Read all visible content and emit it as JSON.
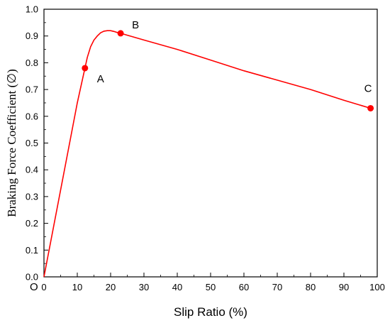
{
  "chart_data": {
    "type": "line",
    "title": "",
    "xlabel": "Slip Ratio (%)",
    "ylabel": "Braking Force Coefficient (∅)",
    "xlim": [
      0,
      100
    ],
    "ylim": [
      0.0,
      1.0
    ],
    "x_ticks": [
      "0",
      "10",
      "20",
      "30",
      "40",
      "50",
      "60",
      "70",
      "80",
      "90",
      "100"
    ],
    "y_ticks": [
      "0.0",
      "0.1",
      "0.2",
      "0.3",
      "0.4",
      "0.5",
      "0.6",
      "0.7",
      "0.8",
      "0.9",
      "1.0"
    ],
    "origin_label": "O",
    "grid": false,
    "line_color": "#ff0000",
    "series": [
      {
        "x": [
          0,
          2,
          4,
          6,
          8,
          10,
          12.3,
          13,
          14,
          15,
          16,
          17,
          18,
          19,
          20,
          21,
          22,
          23,
          30,
          40,
          50,
          60,
          70,
          80,
          90,
          98
        ],
        "y": [
          0.0,
          0.13,
          0.26,
          0.39,
          0.52,
          0.65,
          0.78,
          0.82,
          0.86,
          0.885,
          0.9,
          0.912,
          0.918,
          0.92,
          0.92,
          0.917,
          0.913,
          0.91,
          0.885,
          0.85,
          0.81,
          0.77,
          0.735,
          0.7,
          0.66,
          0.63
        ]
      }
    ],
    "points": [
      {
        "label": "A",
        "x": 12.3,
        "y": 0.78
      },
      {
        "label": "B",
        "x": 23,
        "y": 0.91
      },
      {
        "label": "C",
        "x": 98,
        "y": 0.63
      }
    ]
  }
}
